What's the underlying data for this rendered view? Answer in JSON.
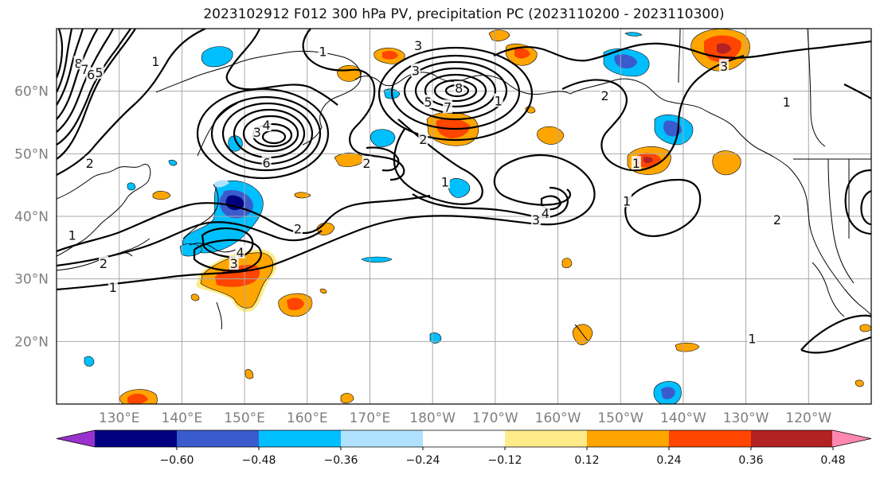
{
  "title": "2023102912 F012 300 hPa PV, precipitation PC (2023110200 - 2023110300)",
  "chart_data": {
    "type": "heatmap",
    "title": "2023102912 F012 300 hPa PV, precipitation PC (2023110200 - 2023110300)",
    "lat_ticks": [
      "60°N",
      "50°N",
      "40°N",
      "30°N",
      "20°N"
    ],
    "lon_ticks": [
      "130°E",
      "140°E",
      "150°E",
      "160°E",
      "170°E",
      "180°W",
      "170°W",
      "160°W",
      "150°W",
      "140°W",
      "130°W",
      "120°W"
    ],
    "grid": true,
    "colorbar": {
      "extend": "both",
      "colors": [
        "#9932cc",
        "#000080",
        "#3a5bcd",
        "#00bfff",
        "#b0e2ff",
        "#ffffff",
        "#ffeb8a",
        "#ffa500",
        "#ff4500",
        "#b22222",
        "#ff88b0"
      ],
      "tick_labels": [
        "−0.60",
        "−0.48",
        "−0.36",
        "−0.24",
        "−0.12",
        "0.12",
        "0.24",
        "0.36",
        "0.48",
        "0.60"
      ]
    },
    "pv_contour_labels": [
      {
        "text": "8",
        "lat": 64.5,
        "lon": 123.5
      },
      {
        "text": "7",
        "lat": 63.5,
        "lon": 124.5
      },
      {
        "text": "6",
        "lat": 62.7,
        "lon": 125.5
      },
      {
        "text": "5",
        "lat": 63,
        "lon": 126.8
      },
      {
        "text": "1",
        "lat": 64.8,
        "lon": 135.8
      },
      {
        "text": "1",
        "lat": 66.4,
        "lon": 162.5
      },
      {
        "text": "3",
        "lat": 67.3,
        "lon": 177.7
      },
      {
        "text": "3",
        "lat": 53.5,
        "lon": 152
      },
      {
        "text": "4",
        "lat": 54.6,
        "lon": 153.5
      },
      {
        "text": "6",
        "lat": 48.6,
        "lon": 153.5
      },
      {
        "text": "2",
        "lat": 48.5,
        "lon": 169.5
      },
      {
        "text": "3",
        "lat": 63.3,
        "lon": 177.3
      },
      {
        "text": "5",
        "lat": 58.3,
        "lon": 179.3
      },
      {
        "text": "8",
        "lat": 60.5,
        "lon": 184.2
      },
      {
        "text": "7",
        "lat": 57.5,
        "lon": 182.4
      },
      {
        "text": "1",
        "lat": 58.5,
        "lon": 190.5
      },
      {
        "text": "2",
        "lat": 52.3,
        "lon": 178.5
      },
      {
        "text": "1",
        "lat": 45.5,
        "lon": 182
      },
      {
        "text": "3",
        "lat": 39.5,
        "lon": 196.5
      },
      {
        "text": "4",
        "lat": 40.5,
        "lon": 198
      },
      {
        "text": "2",
        "lat": 59.3,
        "lon": 207.5
      },
      {
        "text": "1",
        "lat": 48.5,
        "lon": 212.5
      },
      {
        "text": "1",
        "lat": 42.5,
        "lon": 211
      },
      {
        "text": "3",
        "lat": 64,
        "lon": 226.5
      },
      {
        "text": "1",
        "lat": 58.3,
        "lon": 236.5
      },
      {
        "text": "2",
        "lat": 39.5,
        "lon": 235
      },
      {
        "text": "1",
        "lat": 20.5,
        "lon": 231
      },
      {
        "text": "2",
        "lat": 48.5,
        "lon": 125.3
      },
      {
        "text": "1",
        "lat": 37,
        "lon": 122.5
      },
      {
        "text": "2",
        "lat": 32.5,
        "lon": 127.5
      },
      {
        "text": "1",
        "lat": 28.7,
        "lon": 129
      },
      {
        "text": "2",
        "lat": 38,
        "lon": 158.5
      },
      {
        "text": "4",
        "lat": 34.3,
        "lon": 149.3
      },
      {
        "text": "3",
        "lat": 32.5,
        "lon": 148.3
      }
    ]
  }
}
